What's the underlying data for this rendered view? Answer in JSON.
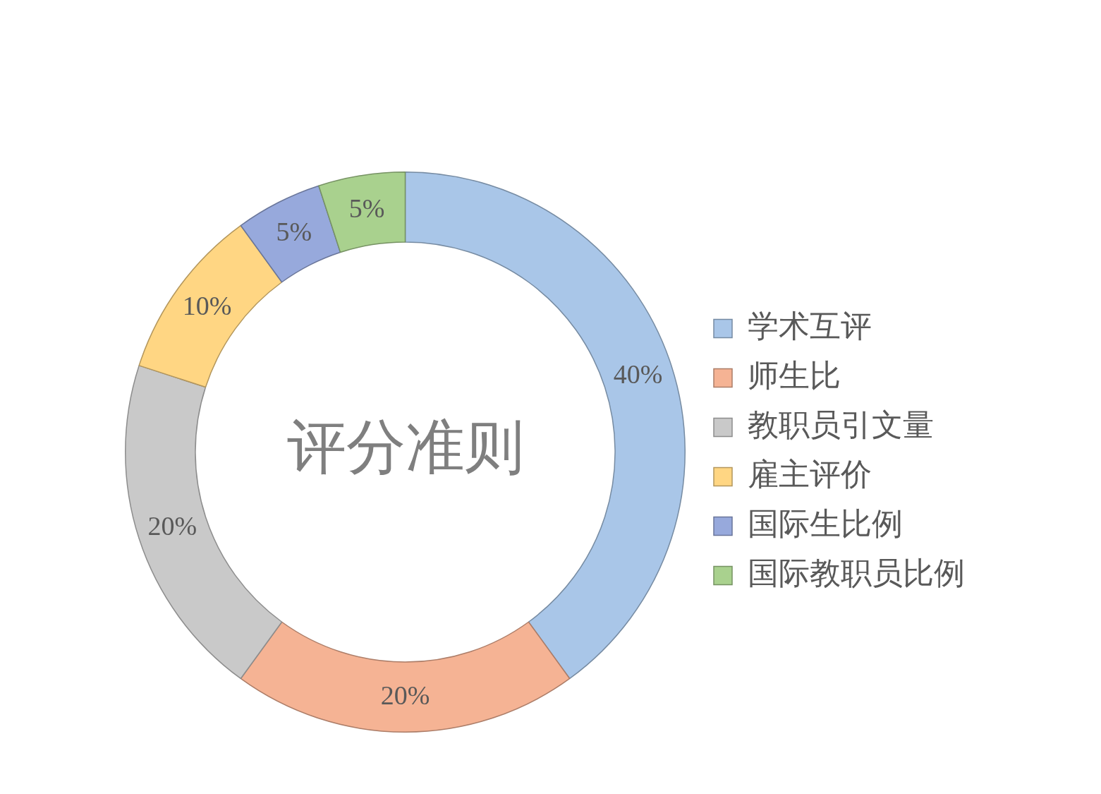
{
  "chart_data": {
    "type": "donut",
    "title": "评分准则",
    "categories": [
      "学术互评",
      "师生比",
      "教职员引文量",
      "雇主评价",
      "国际生比例",
      "国际教职员比例"
    ],
    "values": [
      40,
      20,
      20,
      10,
      5,
      5
    ],
    "value_labels": [
      "40%",
      "20%",
      "20%",
      "10%",
      "5%",
      "5%"
    ],
    "colors": [
      "#a9c6e8",
      "#f5b394",
      "#c9c9c9",
      "#ffd683",
      "#97a9dc",
      "#a9d18e"
    ],
    "legend": "right"
  }
}
